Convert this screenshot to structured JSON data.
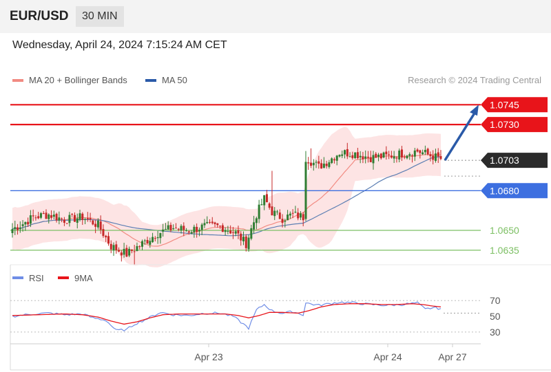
{
  "header": {
    "pair": "EUR/USD",
    "timeframe": "30 MIN"
  },
  "datetime": "Wednesday, April 24, 2024 7:15:24 AM CET",
  "legend": {
    "ma20": "MA 20 + Bollinger Bands",
    "ma50": "MA 50",
    "credit": "Research © 2024 Trading Central"
  },
  "rsi_legend": {
    "rsi": "RSI",
    "ma9": "9MA"
  },
  "colors": {
    "resistance": "#e8141a",
    "support_blue": "#3d6fe0",
    "support_green": "#7cbf63",
    "current": "#2b2b2b",
    "bull": "#2f7d32",
    "bear": "#c62828",
    "ma20": "#f28b82",
    "ma50": "#5c7fb3",
    "band": "#fde4e4",
    "arrow": "#2a5aa8",
    "rsi": "#6f8de6",
    "rsi_ma": "#e8141a"
  },
  "chart_data": [
    {
      "type": "candlestick",
      "ylim": [
        1.0624,
        1.0754
      ],
      "levels": [
        {
          "label": "1.0745",
          "value": 1.0745,
          "kind": "resistance"
        },
        {
          "label": "1.0730",
          "value": 1.073,
          "kind": "resistance"
        },
        {
          "label": "1.0703",
          "value": 1.0703,
          "kind": "current"
        },
        {
          "label": "1.0680",
          "value": 1.068,
          "kind": "support"
        },
        {
          "label": "1.0650",
          "value": 1.065,
          "kind": "target"
        },
        {
          "label": "1.0635",
          "value": 1.0635,
          "kind": "target"
        }
      ],
      "close_anchors": [
        [
          0,
          1.0651
        ],
        [
          4,
          1.0655
        ],
        [
          8,
          1.066
        ],
        [
          14,
          1.0662
        ],
        [
          20,
          1.0658
        ],
        [
          27,
          1.066
        ],
        [
          33,
          1.0654
        ],
        [
          38,
          1.0638
        ],
        [
          44,
          1.0632
        ],
        [
          50,
          1.064
        ],
        [
          56,
          1.0648
        ],
        [
          62,
          1.0652
        ],
        [
          68,
          1.065
        ],
        [
          74,
          1.0653
        ],
        [
          80,
          1.0653
        ],
        [
          86,
          1.0648
        ],
        [
          90,
          1.064
        ],
        [
          94,
          1.0662
        ],
        [
          97,
          1.0674
        ],
        [
          100,
          1.0664
        ],
        [
          104,
          1.0659
        ],
        [
          108,
          1.0662
        ],
        [
          112,
          1.066
        ],
        [
          113,
          1.0705
        ],
        [
          118,
          1.0698
        ],
        [
          122,
          1.0703
        ],
        [
          126,
          1.0709
        ],
        [
          132,
          1.0708
        ],
        [
          138,
          1.0705
        ],
        [
          144,
          1.0706
        ],
        [
          150,
          1.0708
        ],
        [
          156,
          1.071
        ],
        [
          162,
          1.0706
        ],
        [
          165,
          1.0704
        ]
      ],
      "projection": {
        "from": 1.0703,
        "to": 1.0745
      },
      "x_ticks": [
        "Apr 23",
        "Apr 24",
        "Apr 27"
      ]
    },
    {
      "type": "line",
      "title": "RSI",
      "ylim": [
        22,
        78
      ],
      "y_ticks": [
        30,
        50,
        70
      ],
      "series": [
        {
          "name": "RSI",
          "anchors": [
            [
              0,
              50
            ],
            [
              8,
              53
            ],
            [
              14,
              54
            ],
            [
              20,
              52
            ],
            [
              27,
              53
            ],
            [
              31,
              48
            ],
            [
              36,
              45
            ],
            [
              40,
              32
            ],
            [
              44,
              33
            ],
            [
              47,
              40
            ],
            [
              52,
              47
            ],
            [
              57,
              55
            ],
            [
              62,
              52
            ],
            [
              68,
              51
            ],
            [
              74,
              54
            ],
            [
              80,
              54
            ],
            [
              85,
              50
            ],
            [
              89,
              40
            ],
            [
              91,
              35
            ],
            [
              94,
              58
            ],
            [
              97,
              65
            ],
            [
              100,
              57
            ],
            [
              104,
              54
            ],
            [
              108,
              56
            ],
            [
              112,
              52
            ],
            [
              113,
              67
            ],
            [
              118,
              64
            ],
            [
              122,
              66
            ],
            [
              126,
              68
            ],
            [
              132,
              67
            ],
            [
              138,
              65
            ],
            [
              144,
              64
            ],
            [
              150,
              65
            ],
            [
              156,
              67
            ],
            [
              159,
              59
            ],
            [
              162,
              61
            ],
            [
              165,
              60
            ]
          ]
        },
        {
          "name": "9MA",
          "anchors": [
            [
              0,
              51
            ],
            [
              10,
              52
            ],
            [
              20,
              53
            ],
            [
              27,
              52
            ],
            [
              33,
              49
            ],
            [
              38,
              44
            ],
            [
              43,
              40
            ],
            [
              48,
              43
            ],
            [
              53,
              48
            ],
            [
              58,
              52
            ],
            [
              64,
              53
            ],
            [
              70,
              53
            ],
            [
              76,
              53
            ],
            [
              82,
              53
            ],
            [
              87,
              51
            ],
            [
              91,
              48
            ],
            [
              95,
              51
            ],
            [
              99,
              55
            ],
            [
              104,
              55
            ],
            [
              110,
              54
            ],
            [
              114,
              57
            ],
            [
              119,
              62
            ],
            [
              124,
              65
            ],
            [
              130,
              66
            ],
            [
              136,
              66
            ],
            [
              142,
              65
            ],
            [
              148,
              65
            ],
            [
              154,
              66
            ],
            [
              158,
              65
            ],
            [
              162,
              63
            ],
            [
              165,
              62
            ]
          ]
        }
      ],
      "reference_lines": [
        30,
        70
      ]
    }
  ]
}
